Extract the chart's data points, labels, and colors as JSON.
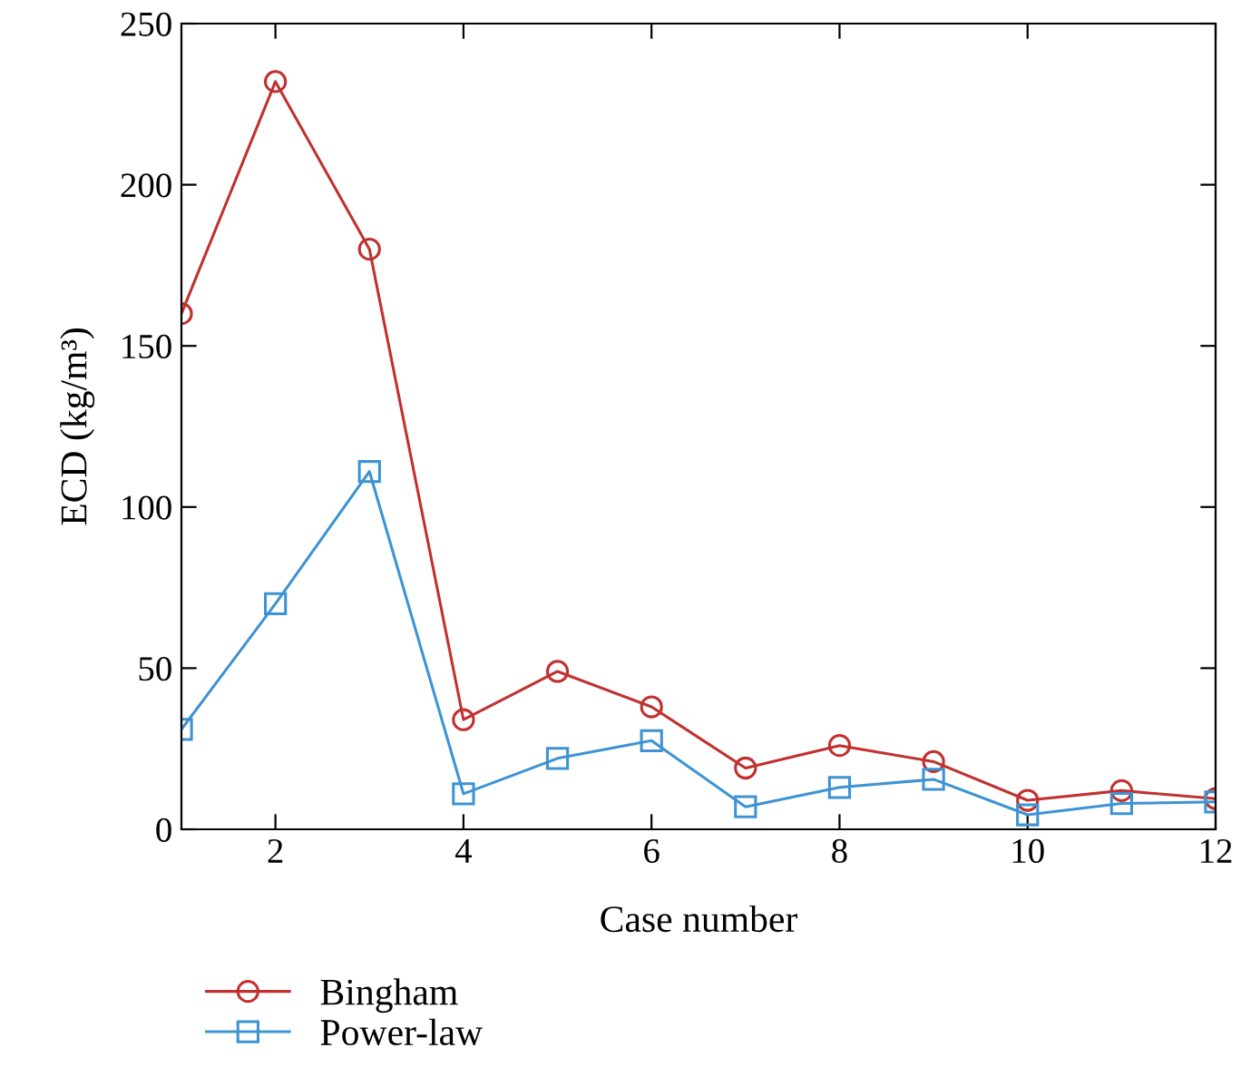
{
  "chart_data": {
    "type": "line",
    "xlabel": "Case number",
    "ylabel": "ECD (kg/m³)",
    "x": [
      1,
      2,
      3,
      4,
      5,
      6,
      7,
      8,
      9,
      10,
      11,
      12
    ],
    "series": [
      {
        "name": "Bingham",
        "color": "#c0312f",
        "marker": "circle",
        "values": [
          160,
          232,
          180,
          34,
          49,
          38,
          19,
          26,
          21,
          9,
          12,
          9.5
        ]
      },
      {
        "name": "Power-law",
        "color": "#3d93d3",
        "marker": "square",
        "values": [
          31,
          70,
          111,
          11,
          22,
          27.5,
          7,
          13,
          15.5,
          4.5,
          8,
          8.5
        ]
      }
    ],
    "xlim": [
      1,
      12
    ],
    "xticks": [
      2,
      4,
      6,
      8,
      10,
      12
    ],
    "ylim": [
      0,
      250
    ],
    "yticks": [
      0,
      50,
      100,
      150,
      200,
      250
    ],
    "grid": false,
    "legend": "bottom left",
    "line_style": "solid"
  }
}
